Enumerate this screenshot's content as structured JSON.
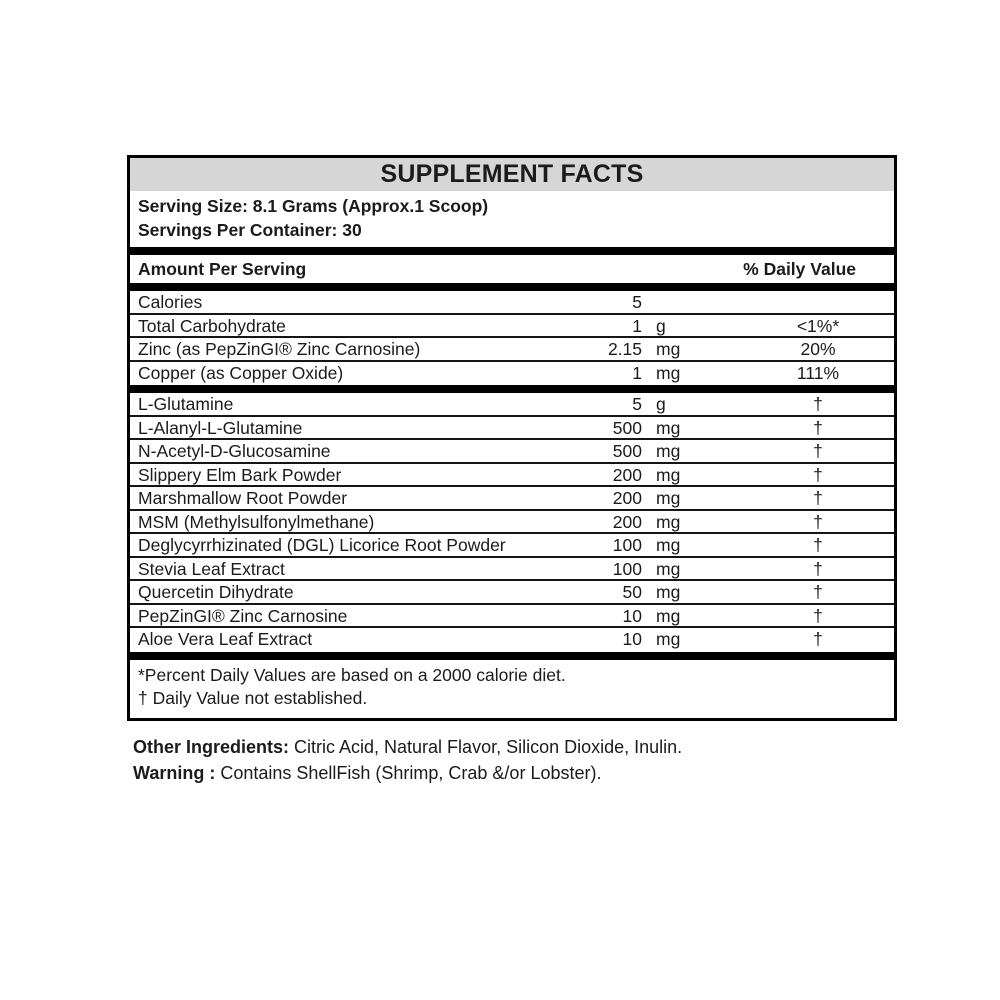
{
  "title": "SUPPLEMENT FACTS",
  "serving": {
    "size": "Serving Size: 8.1 Grams (Approx.1 Scoop)",
    "per_container": "Servings Per Container: 30"
  },
  "header": {
    "amount_label": "Amount Per Serving",
    "daily_value_label": "% Daily Value"
  },
  "sections": [
    {
      "rows": [
        {
          "name": "Calories",
          "amount": "5",
          "unit": "",
          "dv": ""
        },
        {
          "name": "Total Carbohydrate",
          "amount": "1",
          "unit": "g",
          "dv": "<1%*"
        },
        {
          "name": "Zinc (as PepZinGI® Zinc Carnosine)",
          "amount": "2.15",
          "unit": "mg",
          "dv": "20%"
        },
        {
          "name": "Copper (as Copper Oxide)",
          "amount": "1",
          "unit": "mg",
          "dv": "111%"
        }
      ]
    },
    {
      "rows": [
        {
          "name": "L-Glutamine",
          "amount": "5",
          "unit": "g",
          "dv": "†"
        },
        {
          "name": "L-Alanyl-L-Glutamine",
          "amount": "500",
          "unit": "mg",
          "dv": "†"
        },
        {
          "name": "N-Acetyl-D-Glucosamine",
          "amount": "500",
          "unit": "mg",
          "dv": "†"
        },
        {
          "name": "Slippery Elm Bark Powder",
          "amount": "200",
          "unit": "mg",
          "dv": "†"
        },
        {
          "name": "Marshmallow Root Powder",
          "amount": "200",
          "unit": "mg",
          "dv": "†"
        },
        {
          "name": "MSM (Methylsulfonylmethane)",
          "amount": "200",
          "unit": "mg",
          "dv": "†"
        },
        {
          "name": "Deglycyrrhizinated (DGL) Licorice Root Powder",
          "amount": "100",
          "unit": "mg",
          "dv": "†"
        },
        {
          "name": "Stevia Leaf Extract",
          "amount": "100",
          "unit": "mg",
          "dv": "†"
        },
        {
          "name": "Quercetin Dihydrate",
          "amount": "50",
          "unit": "mg",
          "dv": "†"
        },
        {
          "name": "PepZinGI® Zinc Carnosine",
          "amount": "10",
          "unit": "mg",
          "dv": "†"
        },
        {
          "name": "Aloe Vera Leaf Extract",
          "amount": "10",
          "unit": "mg",
          "dv": "†"
        }
      ]
    }
  ],
  "footnotes": {
    "percent": "*Percent Daily Values are based on a 2000 calorie diet.",
    "dagger": "† Daily Value not established."
  },
  "other_ingredients": {
    "label": "Other Ingredients:",
    "text": " Citric Acid, Natural Flavor, Silicon Dioxide, Inulin."
  },
  "warning": {
    "label": "Warning :",
    "text": " Contains ShellFish (Shrimp, Crab &/or Lobster)."
  },
  "colors": {
    "title_bg": "#d6d6d6",
    "border": "#000000",
    "text": "#1b1b1b"
  }
}
